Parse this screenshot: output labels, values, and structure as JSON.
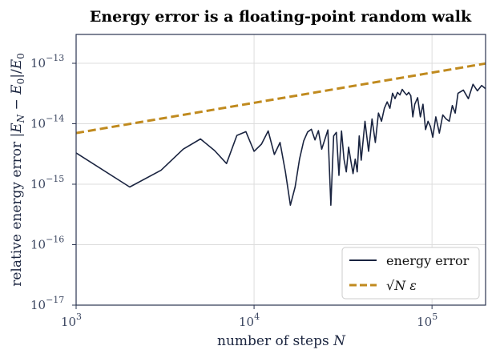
{
  "chart_data": {
    "type": "line",
    "title": "Energy error is a floating-point random walk",
    "xlabel": "number of steps  N",
    "ylabel": "relative energy error  |E_N − E_0|/E_0",
    "xscale": "log",
    "yscale": "log",
    "xlim": [
      1000,
      200000
    ],
    "ylim": [
      1e-17,
      3e-13
    ],
    "grid": true,
    "legend_position": "lower-right",
    "x_ticks": [
      {
        "base": "10",
        "exp": "3"
      },
      {
        "base": "10",
        "exp": "4"
      },
      {
        "base": "10",
        "exp": "5"
      }
    ],
    "y_ticks": [
      {
        "base": "10",
        "exp": "−17",
        "value": 1e-17
      },
      {
        "base": "10",
        "exp": "−16",
        "value": 1e-16
      },
      {
        "base": "10",
        "exp": "−15",
        "value": 1e-15
      },
      {
        "base": "10",
        "exp": "−14",
        "value": 1e-14
      },
      {
        "base": "10",
        "exp": "−13",
        "value": 1e-13
      }
    ],
    "series": [
      {
        "name": "energy error",
        "color": "#1a2440",
        "style": "solid",
        "x": [
          1000,
          2000,
          3000,
          4000,
          5000,
          6000,
          7000,
          8000,
          9000,
          10000,
          11000,
          12000,
          13000,
          14000,
          15000,
          16000,
          17000,
          18000,
          19000,
          20000,
          21000,
          22000,
          23000,
          24000,
          25000,
          26000,
          27000,
          28000,
          29000,
          30000,
          31000,
          32000,
          33000,
          34000,
          35000,
          36000,
          37000,
          38000,
          39000,
          40000,
          42000,
          44000,
          46000,
          48000,
          50000,
          52000,
          54000,
          56000,
          58000,
          60000,
          62000,
          64000,
          66000,
          68000,
          70000,
          72000,
          74000,
          76000,
          78000,
          80000,
          83000,
          86000,
          89000,
          92000,
          95000,
          98000,
          101000,
          105000,
          110000,
          115000,
          120000,
          125000,
          130000,
          135000,
          140000,
          150000,
          160000,
          170000,
          180000,
          190000,
          200000
        ],
        "y": [
          3.3e-15,
          9e-16,
          1.7e-15,
          3.8e-15,
          5.6e-15,
          3.6e-15,
          2.2e-15,
          6.4e-15,
          7.4e-15,
          3.5e-15,
          4.6e-15,
          7.6e-15,
          3.1e-15,
          4.9e-15,
          1.6e-15,
          4.5e-16,
          9e-16,
          2.6e-15,
          5.2e-15,
          7.3e-15,
          8.1e-15,
          5.4e-15,
          7.7e-15,
          3.8e-15,
          5.5e-15,
          7.9e-15,
          4.5e-16,
          6.3e-15,
          7.2e-15,
          1.4e-15,
          7.6e-15,
          2.6e-15,
          1.6e-15,
          4.1e-15,
          2.4e-15,
          1.5e-15,
          2.6e-15,
          1.6e-15,
          6.3e-15,
          2.5e-15,
          1.1e-14,
          3.5e-15,
          1.2e-14,
          4.9e-15,
          1.5e-14,
          1.1e-14,
          1.8e-14,
          2.3e-14,
          1.8e-14,
          3.2e-14,
          2.6e-14,
          3.3e-14,
          3e-14,
          3.7e-14,
          3.3e-14,
          3e-14,
          3.3e-14,
          2.9e-14,
          1.3e-14,
          2.1e-14,
          2.7e-14,
          1.3e-14,
          2.1e-14,
          8e-15,
          1.1e-14,
          9e-15,
          6e-15,
          1.3e-14,
          7e-15,
          1.4e-14,
          1.2e-14,
          1.1e-14,
          2e-14,
          1.5e-14,
          3.2e-14,
          3.6e-14,
          2.6e-14,
          4.5e-14,
          3.5e-14,
          4.3e-14,
          3.8e-14
        ]
      },
      {
        "name": "√N ε",
        "color": "#c08a1e",
        "style": "dashed",
        "x": [
          1000,
          200000
        ],
        "y": [
          7.02e-15,
          9.93e-14
        ]
      }
    ]
  }
}
